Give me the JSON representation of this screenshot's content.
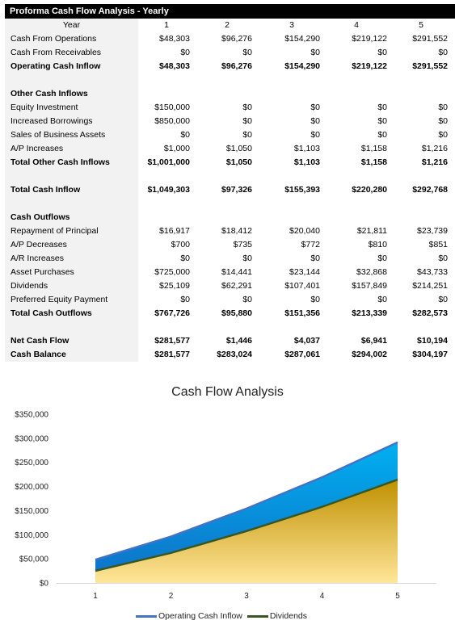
{
  "title": "Proforma Cash Flow Analysis - Yearly",
  "table": {
    "year_label": "Year",
    "years": [
      "1",
      "2",
      "3",
      "4",
      "5"
    ],
    "rows": [
      {
        "label": "Cash From Operations",
        "bold": false,
        "values": [
          "$48,303",
          "$96,276",
          "$154,290",
          "$219,122",
          "$291,552"
        ]
      },
      {
        "label": "Cash From Receivables",
        "bold": false,
        "values": [
          "$0",
          "$0",
          "$0",
          "$0",
          "$0"
        ]
      },
      {
        "label": "Operating Cash Inflow",
        "bold": true,
        "values": [
          "$48,303",
          "$96,276",
          "$154,290",
          "$219,122",
          "$291,552"
        ]
      },
      {
        "label": "",
        "bold": false,
        "values": [
          "",
          "",
          "",
          "",
          ""
        ]
      },
      {
        "label": "Other Cash Inflows",
        "bold": true,
        "values": [
          "",
          "",
          "",
          "",
          ""
        ]
      },
      {
        "label": "Equity Investment",
        "bold": false,
        "values": [
          "$150,000",
          "$0",
          "$0",
          "$0",
          "$0"
        ]
      },
      {
        "label": "Increased Borrowings",
        "bold": false,
        "values": [
          "$850,000",
          "$0",
          "$0",
          "$0",
          "$0"
        ]
      },
      {
        "label": "Sales of Business Assets",
        "bold": false,
        "values": [
          "$0",
          "$0",
          "$0",
          "$0",
          "$0"
        ]
      },
      {
        "label": "A/P Increases",
        "bold": false,
        "values": [
          "$1,000",
          "$1,050",
          "$1,103",
          "$1,158",
          "$1,216"
        ]
      },
      {
        "label": "Total Other Cash Inflows",
        "bold": true,
        "values": [
          "$1,001,000",
          "$1,050",
          "$1,103",
          "$1,158",
          "$1,216"
        ]
      },
      {
        "label": "",
        "bold": false,
        "values": [
          "",
          "",
          "",
          "",
          ""
        ]
      },
      {
        "label": "Total Cash Inflow",
        "bold": true,
        "values": [
          "$1,049,303",
          "$97,326",
          "$155,393",
          "$220,280",
          "$292,768"
        ]
      },
      {
        "label": "",
        "bold": false,
        "values": [
          "",
          "",
          "",
          "",
          ""
        ]
      },
      {
        "label": "Cash Outflows",
        "bold": true,
        "values": [
          "",
          "",
          "",
          "",
          ""
        ]
      },
      {
        "label": "Repayment of Principal",
        "bold": false,
        "values": [
          "$16,917",
          "$18,412",
          "$20,040",
          "$21,811",
          "$23,739"
        ]
      },
      {
        "label": "A/P Decreases",
        "bold": false,
        "values": [
          "$700",
          "$735",
          "$772",
          "$810",
          "$851"
        ]
      },
      {
        "label": "A/R Increases",
        "bold": false,
        "values": [
          "$0",
          "$0",
          "$0",
          "$0",
          "$0"
        ]
      },
      {
        "label": "Asset Purchases",
        "bold": false,
        "values": [
          "$725,000",
          "$14,441",
          "$23,144",
          "$32,868",
          "$43,733"
        ]
      },
      {
        "label": "Dividends",
        "bold": false,
        "values": [
          "$25,109",
          "$62,291",
          "$107,401",
          "$157,849",
          "$214,251"
        ]
      },
      {
        "label": "Preferred Equity Payment",
        "bold": false,
        "values": [
          "$0",
          "$0",
          "$0",
          "$0",
          "$0"
        ]
      },
      {
        "label": "Total Cash Outflows",
        "bold": true,
        "values": [
          "$767,726",
          "$95,880",
          "$151,356",
          "$213,339",
          "$282,573"
        ]
      },
      {
        "label": "",
        "bold": false,
        "values": [
          "",
          "",
          "",
          "",
          ""
        ]
      },
      {
        "label": "Net Cash Flow",
        "bold": true,
        "values": [
          "$281,577",
          "$1,446",
          "$4,037",
          "$6,941",
          "$10,194"
        ]
      },
      {
        "label": "Cash Balance",
        "bold": true,
        "values": [
          "$281,577",
          "$283,024",
          "$287,061",
          "$294,002",
          "$304,197"
        ]
      }
    ]
  },
  "chart_data": {
    "type": "area",
    "title": "Cash Flow Analysis",
    "categories": [
      "1",
      "2",
      "3",
      "4",
      "5"
    ],
    "ylim": [
      0,
      350000
    ],
    "yticks": [
      {
        "v": 0,
        "label": "$0"
      },
      {
        "v": 50000,
        "label": "$50,000"
      },
      {
        "v": 100000,
        "label": "$100,000"
      },
      {
        "v": 150000,
        "label": "$150,000"
      },
      {
        "v": 200000,
        "label": "$200,000"
      },
      {
        "v": 250000,
        "label": "$250,000"
      },
      {
        "v": 300000,
        "label": "$300,000"
      },
      {
        "v": 350000,
        "label": "$350,000"
      }
    ],
    "series": [
      {
        "name": "Operating Cash Inflow",
        "values": [
          48303,
          96276,
          154290,
          219122,
          291552
        ],
        "color": "#4472c4",
        "fill_top": "#00b0f0",
        "fill_bottom": "#0f6fc6"
      },
      {
        "name": "Dividends",
        "values": [
          25109,
          62291,
          107401,
          157849,
          214251
        ],
        "color": "#375623",
        "fill_top": "#bf9000",
        "fill_bottom": "#ffe699"
      }
    ],
    "legend_position": "bottom",
    "grid": false
  }
}
